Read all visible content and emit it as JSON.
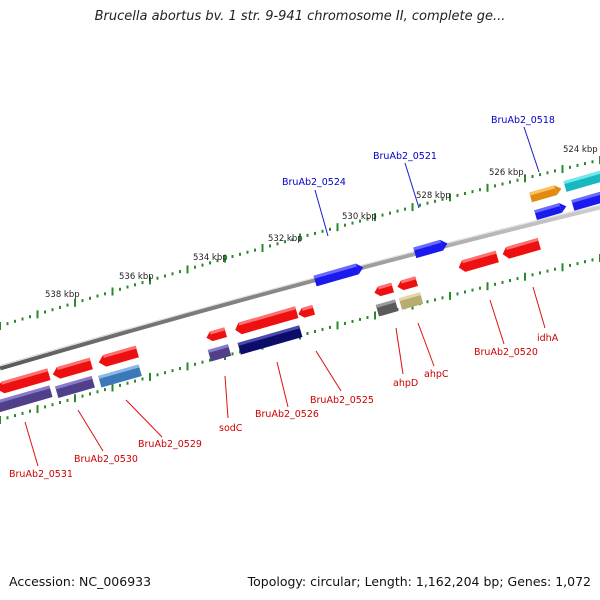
{
  "title": "Brucella abortus bv. 1 str. 9-941 chromosome II, complete ge...",
  "footer": {
    "accession": "Accession: NC_006933",
    "summary": "Topology: circular; Length: 1,162,204 bp; Genes: 1,072"
  },
  "ticks": [
    "538 kbp",
    "536 kbp",
    "534 kbp",
    "532 kbp",
    "530 kbp",
    "528 kbp",
    "526 kbp",
    "524 kbp"
  ],
  "gene_labels_blue": [
    "BruAb2_0524",
    "BruAb2_0521",
    "BruAb2_0518"
  ],
  "gene_labels_red": [
    "BruAb2_0531",
    "BruAb2_0530",
    "BruAb2_0529",
    "sodC",
    "BruAb2_0526",
    "BruAb2_0525",
    "ahpD",
    "ahpC",
    "BruAb2_0520",
    "idhA"
  ],
  "colors": {
    "forward_strand_label": "#0000cc",
    "reverse_strand_label": "#cc0000",
    "tick_color": "#2a8a2a",
    "backbone": "#8a8a8a"
  }
}
